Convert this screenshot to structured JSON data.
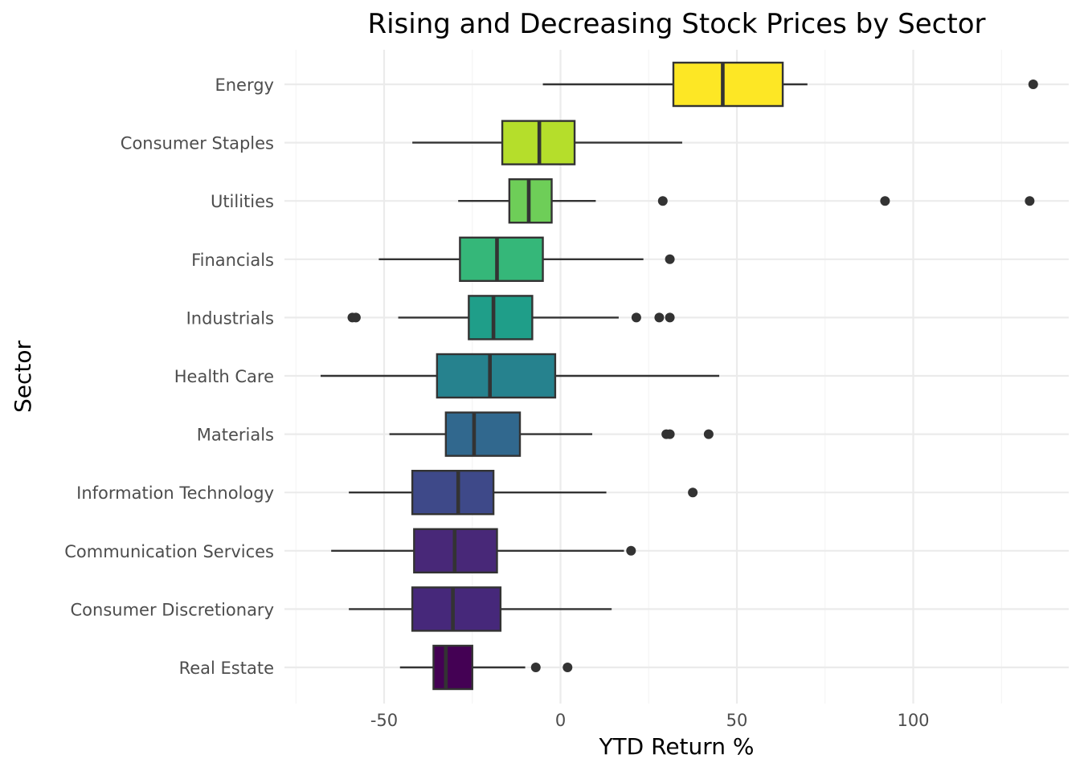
{
  "chart_data": {
    "type": "boxplot",
    "orientation": "horizontal",
    "title": "Rising and Decreasing Stock Prices by Sector",
    "xlabel": "YTD Return %",
    "ylabel": "Sector",
    "xlim": [
      -75,
      140
    ],
    "xticks": [
      -50,
      0,
      50,
      100
    ],
    "xtick_labels": [
      "-50",
      "0",
      "50",
      "100"
    ],
    "grid": true,
    "legend": "none",
    "categories": [
      "Energy",
      "Consumer Staples",
      "Utilities",
      "Financials",
      "Industrials",
      "Health Care",
      "Materials",
      "Information Technology",
      "Communication Services",
      "Consumer Discretionary",
      "Real Estate"
    ],
    "boxes": [
      {
        "sector": "Energy",
        "whisker_low": -5,
        "q1": 32,
        "median": 46,
        "q3": 63,
        "whisker_high": 70,
        "outliers": [
          134
        ],
        "color": "#fde725"
      },
      {
        "sector": "Consumer Staples",
        "whisker_low": -42,
        "q1": -16.5,
        "median": -6,
        "q3": 4,
        "whisker_high": 34.5,
        "outliers": [],
        "color": "#b5de2b"
      },
      {
        "sector": "Utilities",
        "whisker_low": -29,
        "q1": -14.5,
        "median": -9,
        "q3": -2.5,
        "whisker_high": 10,
        "outliers": [
          29,
          92,
          133
        ],
        "color": "#6ece58"
      },
      {
        "sector": "Financials",
        "whisker_low": -51.5,
        "q1": -28.5,
        "median": -18,
        "q3": -5,
        "whisker_high": 23.5,
        "outliers": [
          31
        ],
        "color": "#35b779"
      },
      {
        "sector": "Industrials",
        "whisker_low": -46,
        "q1": -26,
        "median": -19,
        "q3": -8,
        "whisker_high": 16.5,
        "outliers": [
          -59,
          -58,
          21.5,
          28,
          31
        ],
        "color": "#1f9e89"
      },
      {
        "sector": "Health Care",
        "whisker_low": -68,
        "q1": -35,
        "median": -20,
        "q3": -1.5,
        "whisker_high": 45,
        "outliers": [],
        "color": "#26828e"
      },
      {
        "sector": "Materials",
        "whisker_low": -48.5,
        "q1": -32.5,
        "median": -24.5,
        "q3": -11.5,
        "whisker_high": 9,
        "outliers": [
          30,
          31,
          42
        ],
        "color": "#31688e"
      },
      {
        "sector": "Information Technology",
        "whisker_low": -60,
        "q1": -42,
        "median": -29,
        "q3": -19,
        "whisker_high": 13,
        "outliers": [
          37.5
        ],
        "color": "#3e4989"
      },
      {
        "sector": "Communication Services",
        "whisker_low": -65,
        "q1": -41.5,
        "median": -30,
        "q3": -18,
        "whisker_high": 18,
        "outliers": [
          20
        ],
        "color": "#482878"
      },
      {
        "sector": "Consumer Discretionary",
        "whisker_low": -60,
        "q1": -42,
        "median": -30.5,
        "q3": -17,
        "whisker_high": 14.5,
        "outliers": [],
        "color": "#46287a"
      },
      {
        "sector": "Real Estate",
        "whisker_low": -45.5,
        "q1": -36,
        "median": -32.5,
        "q3": -25,
        "whisker_high": -10,
        "outliers": [
          -7,
          2
        ],
        "color": "#440154"
      }
    ]
  }
}
